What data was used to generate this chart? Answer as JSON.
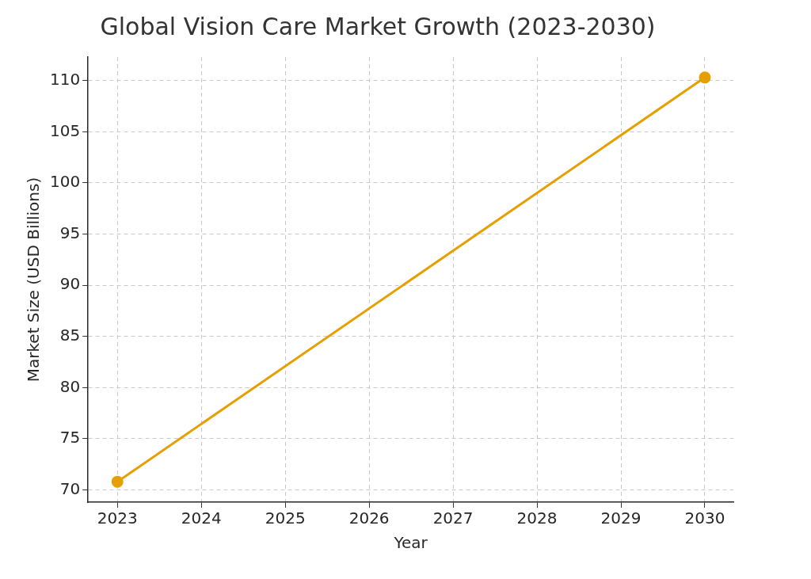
{
  "chart_data": {
    "type": "line",
    "title": "Global Vision Care Market Growth (2023-2030)",
    "xlabel": "Year",
    "ylabel": "Market Size (USD Billions)",
    "x": [
      2023,
      2030
    ],
    "series": [
      {
        "color": "#e69f00",
        "values": [
          70.8,
          110.3
        ]
      }
    ],
    "xlim": [
      2022.65,
      2030.34
    ],
    "xticks": [
      2023,
      2024,
      2025,
      2026,
      2027,
      2028,
      2029,
      2030
    ],
    "ylim": [
      68.8,
      112.3
    ],
    "yticks": [
      70,
      75,
      80,
      85,
      90,
      95,
      100,
      105,
      110
    ],
    "grid": true,
    "marker": "circle",
    "line_style": "solid",
    "legend": false
  }
}
